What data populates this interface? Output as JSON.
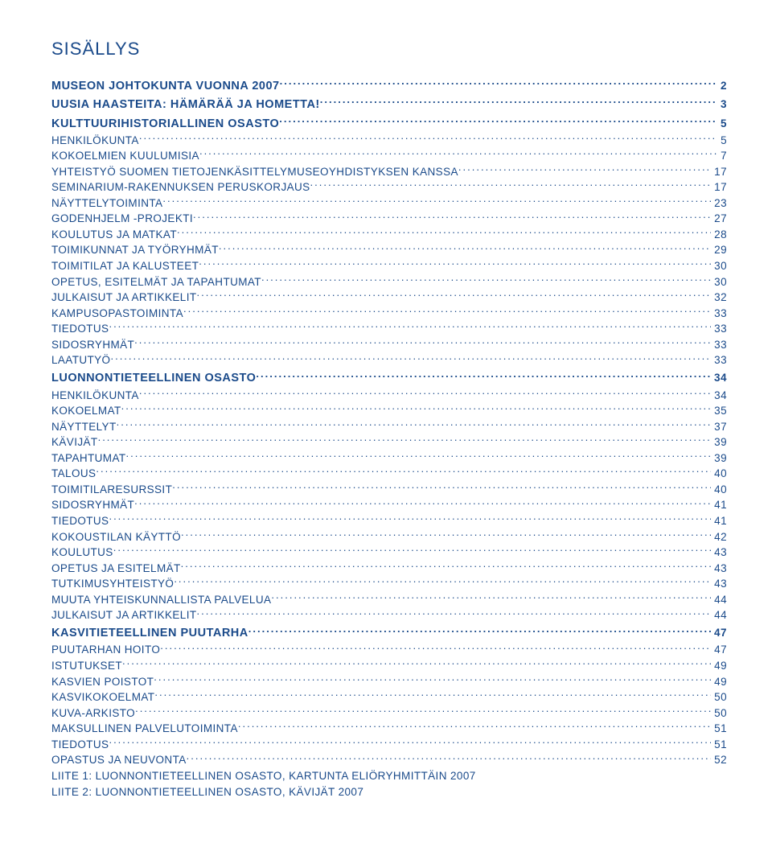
{
  "colors": {
    "text": "#1a4a8a",
    "background": "#ffffff"
  },
  "fontsize": {
    "title": 22,
    "section": 14.5,
    "row": 13.5
  },
  "title": "SISÄLLYS",
  "toc": [
    {
      "label": "MUSEON JOHTOKUNTA VUONNA 2007",
      "page": "2",
      "level": "section"
    },
    {
      "label": "UUSIA HAASTEITA: HÄMÄRÄÄ JA HOMETTA!",
      "page": "3",
      "level": "section"
    },
    {
      "label": "KULTTUURIHISTORIALLINEN OSASTO",
      "page": "5",
      "level": "section"
    },
    {
      "label": "HENKILÖKUNTA",
      "page": "5",
      "level": "sub"
    },
    {
      "label": "KOKOELMIEN KUULUMISIA",
      "page": "7",
      "level": "sub"
    },
    {
      "label": "YHTEISTYÖ SUOMEN TIETOJENKÄSITTELYMUSEOYHDISTYKSEN KANSSA",
      "page": "17",
      "level": "sub"
    },
    {
      "label": "SEMINARIUM-RAKENNUKSEN PERUSKORJAUS",
      "page": "17",
      "level": "sub"
    },
    {
      "label": "NÄYTTELYTOIMINTA",
      "page": "23",
      "level": "sub"
    },
    {
      "label": "GODENHJELM -PROJEKTI",
      "page": "27",
      "level": "sub"
    },
    {
      "label": "KOULUTUS JA MATKAT",
      "page": "28",
      "level": "sub"
    },
    {
      "label": "TOIMIKUNNAT JA TYÖRYHMÄT",
      "page": "29",
      "level": "sub"
    },
    {
      "label": "TOIMITILAT JA KALUSTEET",
      "page": "30",
      "level": "sub"
    },
    {
      "label": "OPETUS, ESITELMÄT JA TAPAHTUMAT",
      "page": "30",
      "level": "sub"
    },
    {
      "label": "JULKAISUT JA ARTIKKELIT",
      "page": "32",
      "level": "sub"
    },
    {
      "label": "KAMPUSOPASTOIMINTA",
      "page": "33",
      "level": "sub"
    },
    {
      "label": "TIEDOTUS",
      "page": "33",
      "level": "sub"
    },
    {
      "label": "SIDOSRYHMÄT",
      "page": "33",
      "level": "sub"
    },
    {
      "label": "LAATUTYÖ",
      "page": "33",
      "level": "sub"
    },
    {
      "label": "LUONNONTIETEELLINEN OSASTO",
      "page": "34",
      "level": "section"
    },
    {
      "label": "HENKILÖKUNTA",
      "page": "34",
      "level": "sub"
    },
    {
      "label": "KOKOELMAT",
      "page": "35",
      "level": "sub"
    },
    {
      "label": "NÄYTTELYT",
      "page": "37",
      "level": "sub"
    },
    {
      "label": "KÄVIJÄT",
      "page": "39",
      "level": "sub"
    },
    {
      "label": "TAPAHTUMAT",
      "page": "39",
      "level": "sub"
    },
    {
      "label": "TALOUS",
      "page": "40",
      "level": "sub"
    },
    {
      "label": "TOIMITILARESURSSIT",
      "page": "40",
      "level": "sub"
    },
    {
      "label": "SIDOSRYHMÄT",
      "page": "41",
      "level": "sub"
    },
    {
      "label": "TIEDOTUS",
      "page": "41",
      "level": "sub"
    },
    {
      "label": "KOKOUSTILAN KÄYTTÖ",
      "page": "42",
      "level": "sub"
    },
    {
      "label": "KOULUTUS",
      "page": "43",
      "level": "sub"
    },
    {
      "label": "OPETUS JA ESITELMÄT",
      "page": "43",
      "level": "sub"
    },
    {
      "label": "TUTKIMUSYHTEISTYÖ",
      "page": "43",
      "level": "sub"
    },
    {
      "label": "MUUTA YHTEISKUNNALLISTA PALVELUA",
      "page": "44",
      "level": "sub"
    },
    {
      "label": "JULKAISUT JA ARTIKKELIT",
      "page": "44",
      "level": "sub"
    },
    {
      "label": "KASVITIETEELLINEN PUUTARHA",
      "page": "47",
      "level": "section"
    },
    {
      "label": "PUUTARHAN HOITO",
      "page": "47",
      "level": "sub"
    },
    {
      "label": "ISTUTUKSET",
      "page": "49",
      "level": "sub"
    },
    {
      "label": "KASVIEN POISTOT",
      "page": "49",
      "level": "sub"
    },
    {
      "label": "KASVIKOKOELMAT",
      "page": "50",
      "level": "sub"
    },
    {
      "label": "KUVA-ARKISTO",
      "page": "50",
      "level": "sub"
    },
    {
      "label": "MAKSULLINEN PALVELUTOIMINTA",
      "page": "51",
      "level": "sub"
    },
    {
      "label": "TIEDOTUS",
      "page": "51",
      "level": "sub"
    },
    {
      "label": "OPASTUS JA NEUVONTA",
      "page": "52",
      "level": "sub"
    }
  ],
  "footer": [
    "LIITE 1: LUONNONTIETEELLINEN OSASTO, KARTUNTA ELIÖRYHMITTÄIN 2007",
    "LIITE 2: LUONNONTIETEELLINEN OSASTO, KÄVIJÄT 2007"
  ]
}
